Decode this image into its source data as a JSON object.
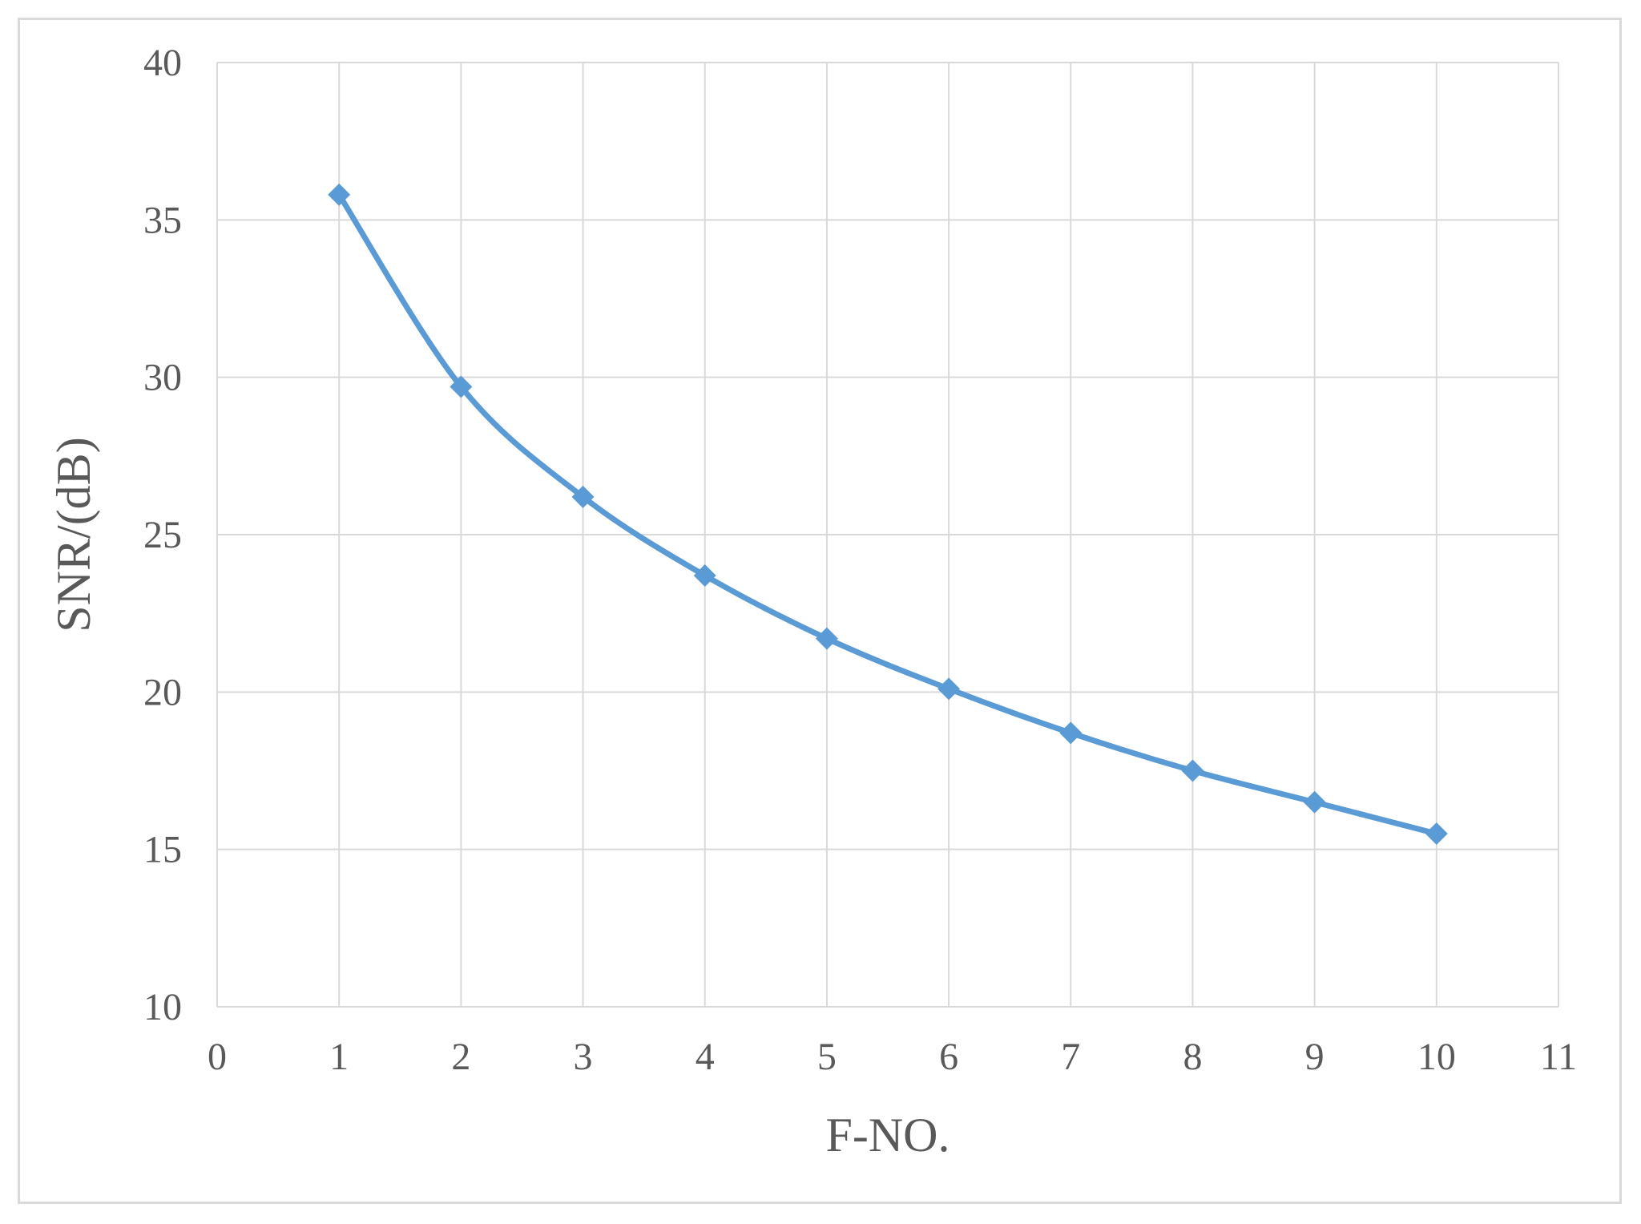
{
  "chart_data": {
    "type": "scatter",
    "title": "",
    "xlabel": "F-NO.",
    "ylabel": "SNR/(dB)",
    "xlim": [
      0,
      11
    ],
    "ylim": [
      10,
      40
    ],
    "x_ticks": [
      0,
      1,
      2,
      3,
      4,
      5,
      6,
      7,
      8,
      9,
      10,
      11
    ],
    "y_ticks": [
      10,
      15,
      20,
      25,
      30,
      35,
      40
    ],
    "grid": true,
    "line_style": "smoothed line with diamond markers",
    "series": [
      {
        "color": "#5b9bd5",
        "marker": "diamond",
        "x": [
          1,
          2,
          3,
          4,
          5,
          6,
          7,
          8,
          9,
          10
        ],
        "y": [
          35.8,
          29.7,
          26.2,
          23.7,
          21.7,
          20.1,
          18.7,
          17.5,
          16.5,
          15.5
        ]
      }
    ]
  }
}
